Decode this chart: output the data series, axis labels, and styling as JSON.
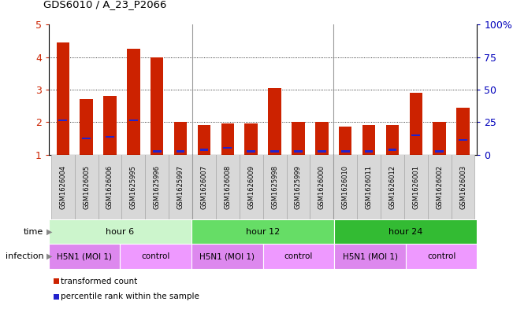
{
  "title": "GDS6010 / A_23_P2066",
  "samples": [
    "GSM1626004",
    "GSM1626005",
    "GSM1626006",
    "GSM1625995",
    "GSM1625996",
    "GSM1625997",
    "GSM1626007",
    "GSM1626008",
    "GSM1626009",
    "GSM1625998",
    "GSM1625999",
    "GSM1626000",
    "GSM1626010",
    "GSM1626011",
    "GSM1626012",
    "GSM1626001",
    "GSM1626002",
    "GSM1626003"
  ],
  "red_values": [
    4.45,
    2.7,
    2.8,
    4.25,
    4.0,
    2.0,
    1.9,
    1.95,
    1.95,
    3.05,
    2.0,
    2.0,
    1.85,
    1.9,
    1.9,
    2.9,
    2.0,
    2.45
  ],
  "blue_values": [
    2.05,
    1.5,
    1.55,
    2.05,
    1.1,
    1.1,
    1.15,
    1.2,
    1.1,
    1.1,
    1.1,
    1.1,
    1.1,
    1.1,
    1.15,
    1.6,
    1.1,
    1.45
  ],
  "ylim": [
    1,
    5
  ],
  "yticks": [
    1,
    2,
    3,
    4,
    5
  ],
  "right_yticks": [
    0,
    25,
    50,
    75,
    100
  ],
  "time_groups": [
    {
      "label": "hour 6",
      "start": 0,
      "end": 6,
      "color": "#ccf5cc"
    },
    {
      "label": "hour 12",
      "start": 6,
      "end": 12,
      "color": "#66dd66"
    },
    {
      "label": "hour 24",
      "start": 12,
      "end": 18,
      "color": "#33bb33"
    }
  ],
  "infection_groups": [
    {
      "label": "H5N1 (MOI 1)",
      "start": 0,
      "end": 3,
      "color": "#dd88ee"
    },
    {
      "label": "control",
      "start": 3,
      "end": 6,
      "color": "#ee99ff"
    },
    {
      "label": "H5N1 (MOI 1)",
      "start": 6,
      "end": 9,
      "color": "#dd88ee"
    },
    {
      "label": "control",
      "start": 9,
      "end": 12,
      "color": "#ee99ff"
    },
    {
      "label": "H5N1 (MOI 1)",
      "start": 12,
      "end": 15,
      "color": "#dd88ee"
    },
    {
      "label": "control",
      "start": 15,
      "end": 18,
      "color": "#ee99ff"
    }
  ],
  "red_color": "#cc2200",
  "blue_color": "#2222cc",
  "sample_box_color": "#d8d8d8",
  "sample_box_edge": "#aaaaaa",
  "bg_color": "#ffffff",
  "tick_label_color_left": "#cc2200",
  "tick_label_color_right": "#0000bb",
  "legend_red": "transformed count",
  "legend_blue": "percentile rank within the sample",
  "bar_width": 0.55
}
